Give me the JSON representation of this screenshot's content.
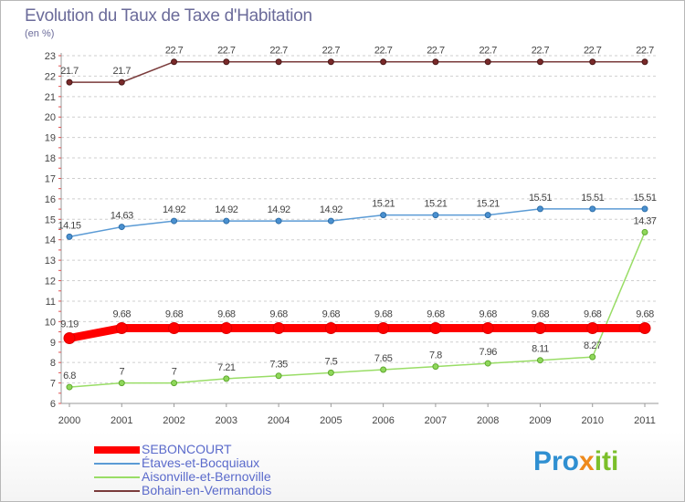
{
  "chart_data": {
    "type": "line",
    "title": "Evolution du Taux de Taxe d'Habitation",
    "ylabel": "(en %)",
    "xlabel": "",
    "x": [
      "2000",
      "2001",
      "2002",
      "2003",
      "2004",
      "2005",
      "2006",
      "2007",
      "2008",
      "2009",
      "2010",
      "2011"
    ],
    "ylim": [
      6,
      23
    ],
    "yticks": [
      "6",
      "7",
      "8",
      "9",
      "10",
      "11",
      "12",
      "13",
      "14",
      "15",
      "16",
      "17",
      "18",
      "19",
      "20",
      "21",
      "22",
      "23"
    ],
    "grid": "horizontal dashed",
    "legend_position": "bottom-left",
    "series": [
      {
        "name": "SEBONCOURT",
        "color": "#ff0000",
        "values": [
          9.19,
          9.68,
          9.68,
          9.68,
          9.68,
          9.68,
          9.68,
          9.68,
          9.68,
          9.68,
          9.68,
          9.68
        ],
        "labels": [
          "9.19",
          "9.68",
          "9.68",
          "9.68",
          "9.68",
          "9.68",
          "9.68",
          "9.68",
          "9.68",
          "9.68",
          "9.68",
          "9.68"
        ]
      },
      {
        "name": "Étaves-et-Bocquiaux",
        "color": "#5b9bd5",
        "values": [
          14.15,
          14.63,
          14.92,
          14.92,
          14.92,
          14.92,
          15.21,
          15.21,
          15.21,
          15.51,
          15.51,
          15.51
        ],
        "labels": [
          "14.15",
          "14.63",
          "14.92",
          "14.92",
          "14.92",
          "14.92",
          "15.21",
          "15.21",
          "15.21",
          "15.51",
          "15.51",
          "15.51"
        ]
      },
      {
        "name": "Aisonville-et-Bernoville",
        "color": "#99dd66",
        "values": [
          6.8,
          7,
          7,
          7.21,
          7.35,
          7.5,
          7.65,
          7.8,
          7.96,
          8.11,
          8.27,
          14.37
        ],
        "labels": [
          "6.8",
          "7",
          "7",
          "7.21",
          "7.35",
          "7.5",
          "7.65",
          "7.8",
          "7.96",
          "8.11",
          "8.27",
          "14.37"
        ]
      },
      {
        "name": "Bohain-en-Vermandois",
        "color": "#7a3b3b",
        "values": [
          21.7,
          21.7,
          22.7,
          22.7,
          22.7,
          22.7,
          22.7,
          22.7,
          22.7,
          22.7,
          22.7,
          22.7
        ],
        "labels": [
          "21.7",
          "21.7",
          "22.7",
          "22.7",
          "22.7",
          "22.7",
          "22.7",
          "22.7",
          "22.7",
          "22.7",
          "22.7",
          "22.7"
        ]
      }
    ]
  },
  "logo": {
    "part1": "Pro",
    "part2": "x",
    "part3": "iti"
  }
}
